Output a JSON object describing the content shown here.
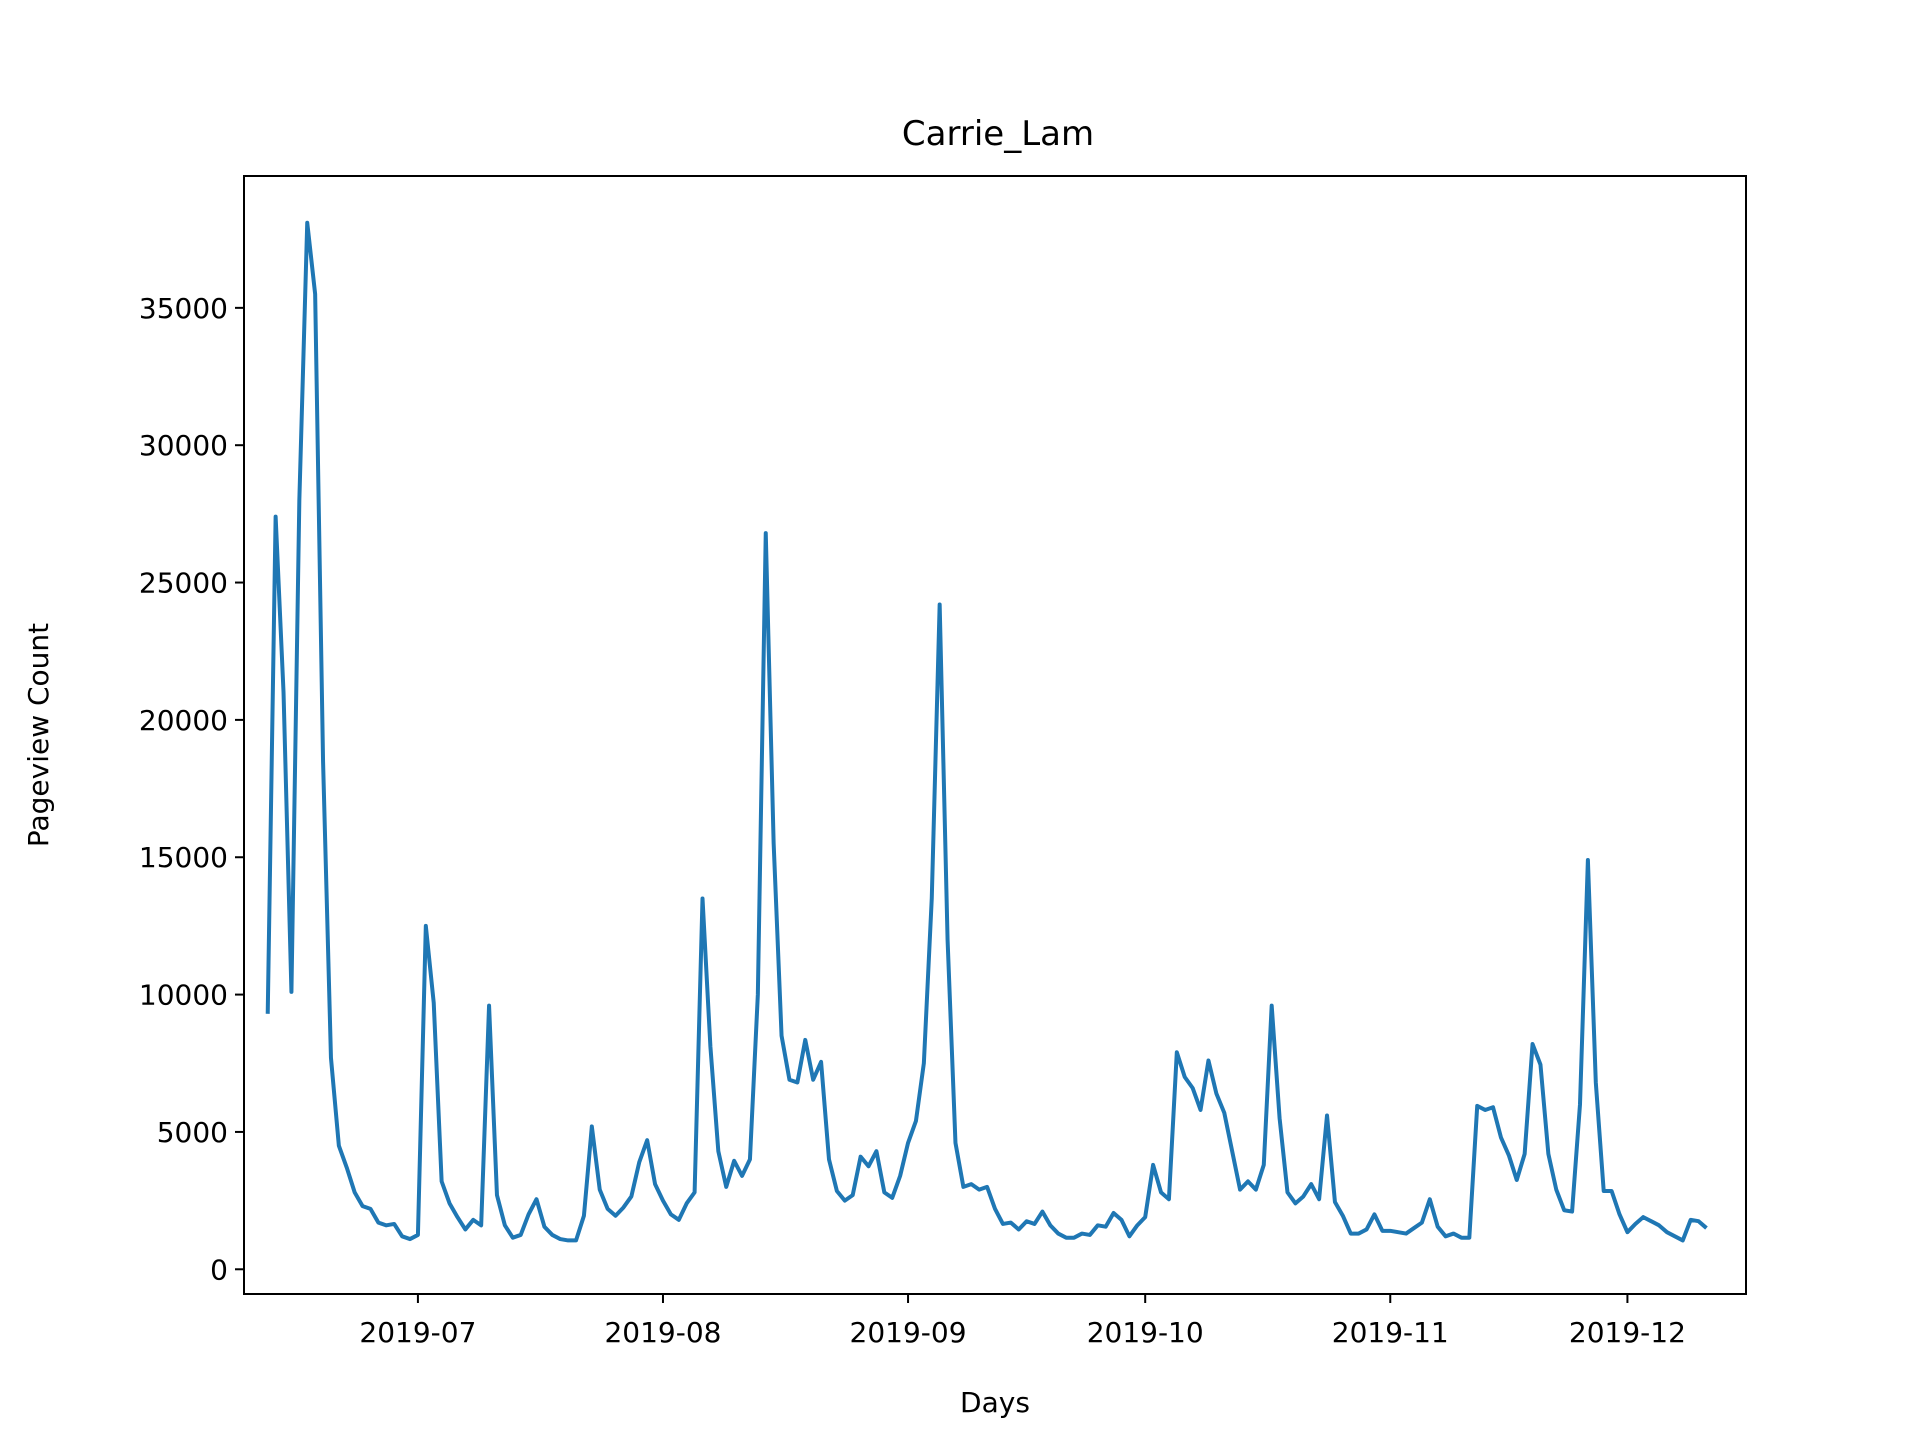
{
  "chart_data": {
    "type": "line",
    "title": "Carrie_Lam",
    "xlabel": "Days",
    "ylabel": "Pageview Count",
    "x_start": "2019-06-12",
    "x_interval": "1 day",
    "xlim": [
      "2019-06-09",
      "2019-12-16"
    ],
    "ylim": [
      -900,
      39800
    ],
    "x_ticks": [
      "2019-07",
      "2019-08",
      "2019-09",
      "2019-10",
      "2019-11",
      "2019-12"
    ],
    "y_ticks": [
      "0",
      "5000",
      "10000",
      "15000",
      "20000",
      "25000",
      "30000",
      "35000"
    ],
    "grid": false,
    "legend": "none",
    "series": [
      {
        "color": "#1f77b4",
        "values": [
          9300,
          27400,
          21000,
          10100,
          28000,
          38100,
          35500,
          18500,
          7700,
          4500,
          3700,
          2800,
          2300,
          2200,
          1700,
          1600,
          1650,
          1200,
          1100,
          1250,
          12500,
          9700,
          3200,
          2400,
          1900,
          1450,
          1800,
          1600,
          9600,
          2700,
          1600,
          1150,
          1250,
          2000,
          2550,
          1550,
          1250,
          1100,
          1050,
          1050,
          1950,
          5200,
          2900,
          2200,
          1950,
          2250,
          2650,
          3900,
          4700,
          3100,
          2500,
          2000,
          1800,
          2400,
          2800,
          13500,
          8100,
          4300,
          3000,
          3950,
          3400,
          4000,
          10000,
          26800,
          15500,
          8500,
          6900,
          6800,
          8350,
          6900,
          7550,
          4000,
          2850,
          2500,
          2700,
          4100,
          3750,
          4300,
          2800,
          2600,
          3400,
          4600,
          5400,
          7500,
          13500,
          24200,
          12000,
          4600,
          3000,
          3100,
          2900,
          3000,
          2200,
          1650,
          1700,
          1450,
          1750,
          1650,
          2100,
          1600,
          1300,
          1150,
          1150,
          1300,
          1250,
          1600,
          1550,
          2050,
          1800,
          1200,
          1600,
          1900,
          3800,
          2800,
          2550,
          7900,
          7000,
          6600,
          5800,
          7600,
          6400,
          5700,
          4300,
          2900,
          3200,
          2900,
          3800,
          9600,
          5500,
          2800,
          2400,
          2650,
          3100,
          2550,
          5600,
          2450,
          1950,
          1300,
          1300,
          1450,
          2000,
          1400,
          1400,
          1350,
          1300,
          1500,
          1700,
          2550,
          1550,
          1200,
          1300,
          1150,
          1150,
          5950,
          5800,
          5900,
          4800,
          4150,
          3250,
          4200,
          8200,
          7450,
          4200,
          2900,
          2150,
          2100,
          6000,
          14900,
          6800,
          2850,
          2850,
          2000,
          1350,
          1650,
          1900,
          1750,
          1600,
          1350,
          1200,
          1050,
          1800,
          1750,
          1500
        ]
      }
    ]
  }
}
